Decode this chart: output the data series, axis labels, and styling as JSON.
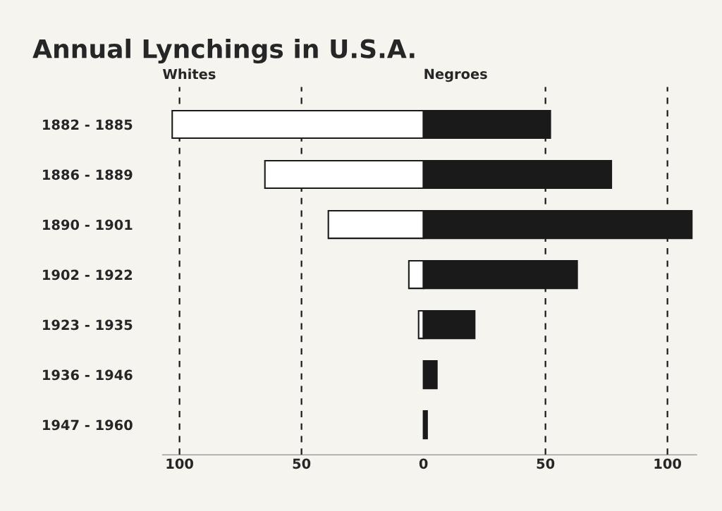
{
  "chart_data": {
    "type": "bar",
    "orientation": "horizontal",
    "title": "Annual Lynchings in U.S.A.",
    "categories": [
      "1882 - 1885",
      "1886 - 1889",
      "1890 - 1901",
      "1902 - 1922",
      "1923 - 1935",
      "1936 - 1946",
      "1947 - 1960"
    ],
    "series": [
      {
        "name": "Whites",
        "color": "#ffffff",
        "values": [
          -103,
          -65,
          -39,
          -6,
          -2,
          null,
          null
        ]
      },
      {
        "name": "Negroes",
        "color": "#1a1a1a",
        "values": [
          52,
          77,
          110,
          63,
          21,
          5.5,
          1.5
        ]
      }
    ],
    "xlim": [
      -107,
      112
    ],
    "xticks": [
      {
        "value": -100,
        "label": "100"
      },
      {
        "value": -50,
        "label": "50"
      },
      0,
      50,
      100
    ],
    "ref_lines": [
      {
        "axis": "x",
        "value": -100,
        "line_style": "dashed",
        "color": "#1a1a1a"
      },
      {
        "axis": "x",
        "value": -50,
        "line_style": "dashed",
        "color": "#1a1a1a"
      },
      {
        "axis": "x",
        "value": 50,
        "line_style": "dashed",
        "color": "#1a1a1a"
      },
      {
        "axis": "x",
        "value": 100,
        "line_style": "dashed",
        "color": "#1a1a1a"
      }
    ],
    "stacked": true,
    "grid": false,
    "legend": false
  }
}
